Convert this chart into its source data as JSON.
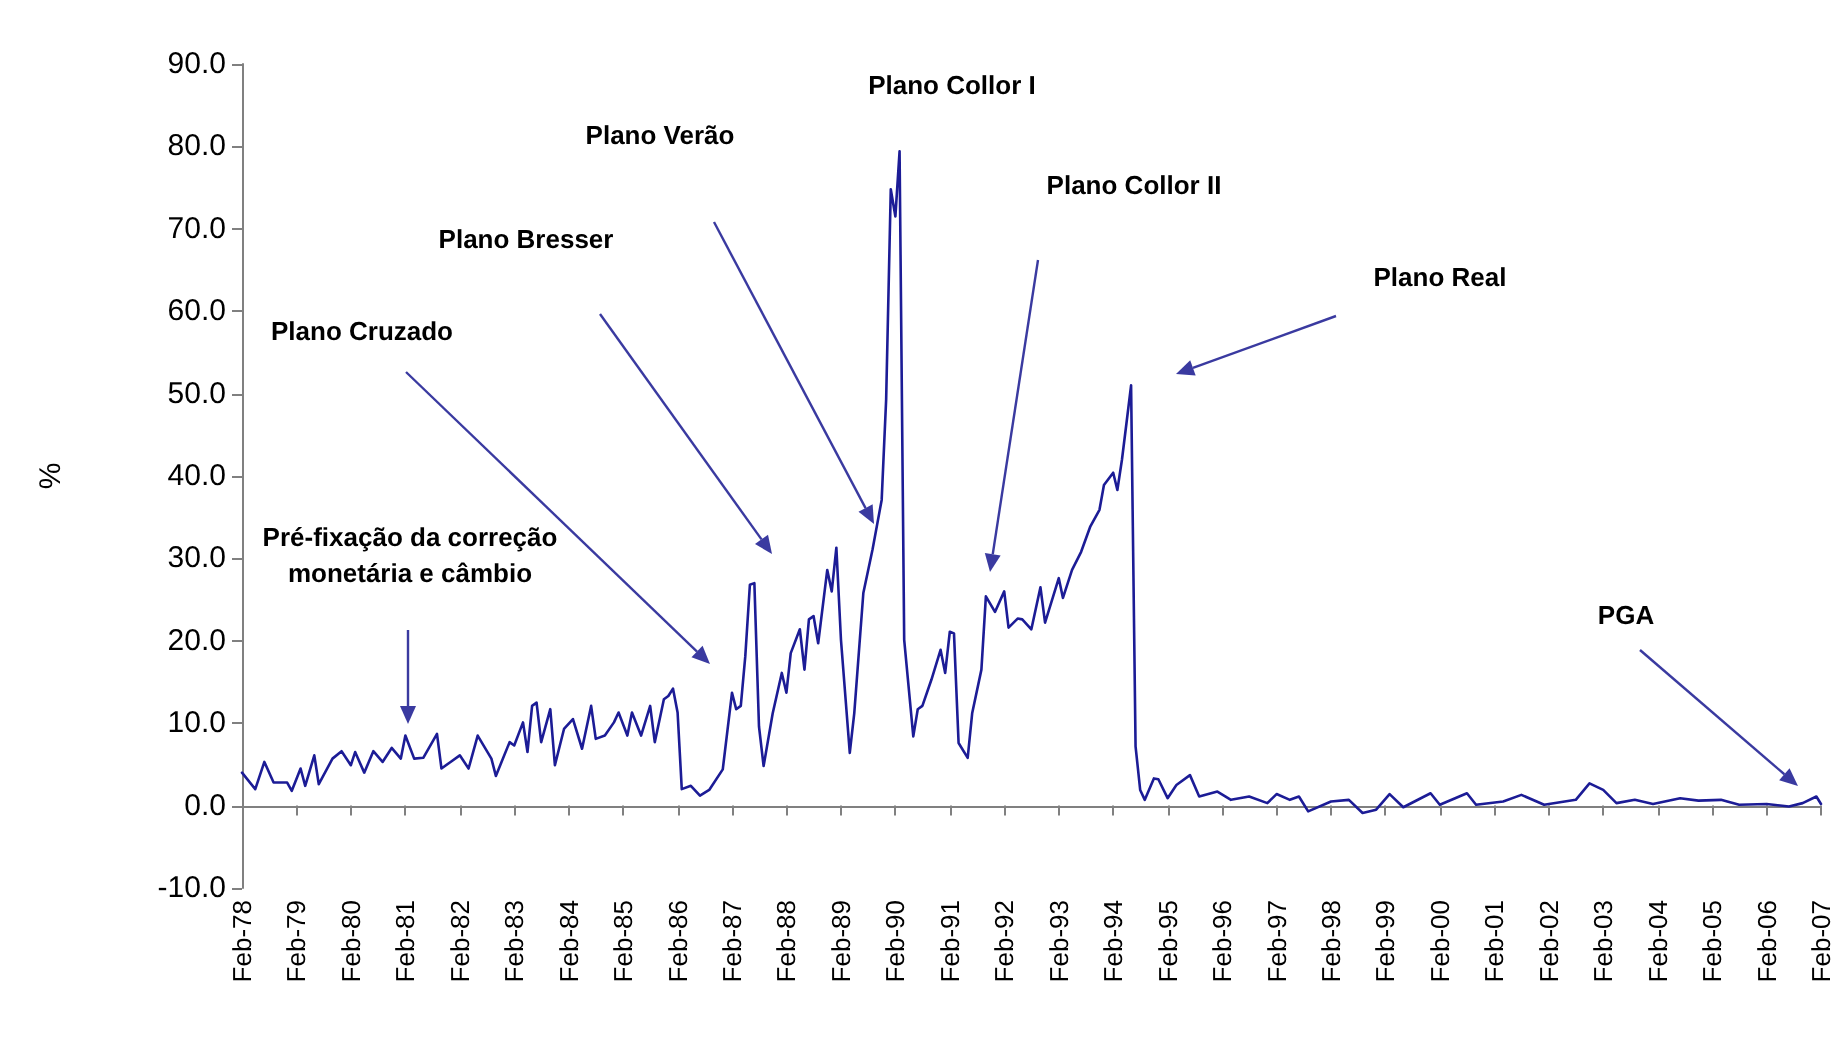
{
  "chart_data": {
    "type": "line",
    "ylabel": "%",
    "xlim": [
      "1978-02",
      "2007-02"
    ],
    "ylim": [
      -10,
      90
    ],
    "xticks": [
      {
        "value": "1978-02",
        "label": "Feb-78"
      },
      {
        "value": "1979-02",
        "label": "Feb-79"
      },
      {
        "value": "1980-02",
        "label": "Feb-80"
      },
      {
        "value": "1981-02",
        "label": "Feb-81"
      },
      {
        "value": "1982-02",
        "label": "Feb-82"
      },
      {
        "value": "1983-02",
        "label": "Feb-83"
      },
      {
        "value": "1984-02",
        "label": "Feb-84"
      },
      {
        "value": "1985-02",
        "label": "Feb-85"
      },
      {
        "value": "1986-02",
        "label": "Feb-86"
      },
      {
        "value": "1987-02",
        "label": "Feb-87"
      },
      {
        "value": "1988-02",
        "label": "Feb-88"
      },
      {
        "value": "1989-02",
        "label": "Feb-89"
      },
      {
        "value": "1990-02",
        "label": "Feb-90"
      },
      {
        "value": "1991-02",
        "label": "Feb-91"
      },
      {
        "value": "1992-02",
        "label": "Feb-92"
      },
      {
        "value": "1993-02",
        "label": "Feb-93"
      },
      {
        "value": "1994-02",
        "label": "Feb-94"
      },
      {
        "value": "1995-02",
        "label": "Feb-95"
      },
      {
        "value": "1996-02",
        "label": "Feb-96"
      },
      {
        "value": "1997-02",
        "label": "Feb-97"
      },
      {
        "value": "1998-02",
        "label": "Feb-98"
      },
      {
        "value": "1999-02",
        "label": "Feb-99"
      },
      {
        "value": "2000-02",
        "label": "Feb-00"
      },
      {
        "value": "2001-02",
        "label": "Feb-01"
      },
      {
        "value": "2002-02",
        "label": "Feb-02"
      },
      {
        "value": "2003-02",
        "label": "Feb-03"
      },
      {
        "value": "2004-02",
        "label": "Feb-04"
      },
      {
        "value": "2005-02",
        "label": "Feb-05"
      },
      {
        "value": "2006-02",
        "label": "Feb-06"
      },
      {
        "value": "2007-02",
        "label": "Feb-07"
      }
    ],
    "yticks": [
      {
        "value": -10,
        "label": "-10.0"
      },
      {
        "value": 0,
        "label": "0.0"
      },
      {
        "value": 10,
        "label": "10.0"
      },
      {
        "value": 20,
        "label": "20.0"
      },
      {
        "value": 30,
        "label": "30.0"
      },
      {
        "value": 40,
        "label": "40.0"
      },
      {
        "value": 50,
        "label": "50.0"
      },
      {
        "value": 60,
        "label": "60.0"
      },
      {
        "value": 70,
        "label": "70.0"
      },
      {
        "value": 80,
        "label": "80.0"
      },
      {
        "value": 90,
        "label": "90.0"
      }
    ],
    "marker": "none",
    "line_style": "solid",
    "series": [
      {
        "color": "#1c1c96",
        "x": [
          "1978-02",
          "1978-05",
          "1978-07",
          "1978-09",
          "1978-12",
          "1979-01",
          "1979-03",
          "1979-04",
          "1979-06",
          "1979-07",
          "1979-10",
          "1979-12",
          "1980-02",
          "1980-03",
          "1980-05",
          "1980-07",
          "1980-09",
          "1980-11",
          "1981-01",
          "1981-02",
          "1981-04",
          "1981-06",
          "1981-09",
          "1981-10",
          "1981-12",
          "1982-02",
          "1982-04",
          "1982-06",
          "1982-09",
          "1982-10",
          "1983-01",
          "1983-02",
          "1983-04",
          "1983-05",
          "1983-06",
          "1983-07",
          "1983-08",
          "1983-10",
          "1983-11",
          "1984-01",
          "1984-03",
          "1984-05",
          "1984-07",
          "1984-08",
          "1984-10",
          "1984-12",
          "1985-01",
          "1985-03",
          "1985-04",
          "1985-06",
          "1985-08",
          "1985-09",
          "1985-11",
          "1985-12",
          "1986-01",
          "1986-02",
          "1986-03",
          "1986-05",
          "1986-07",
          "1986-09",
          "1986-12",
          "1987-02",
          "1987-03",
          "1987-04",
          "1987-05",
          "1987-06",
          "1987-07",
          "1987-08",
          "1987-09",
          "1987-11",
          "1988-01",
          "1988-02",
          "1988-03",
          "1988-05",
          "1988-06",
          "1988-07",
          "1988-08",
          "1988-09",
          "1988-11",
          "1988-12",
          "1989-01",
          "1989-02",
          "1989-04",
          "1989-05",
          "1989-07",
          "1989-09",
          "1989-11",
          "1989-12",
          "1990-01",
          "1990-02",
          "1990-03",
          "1990-04",
          "1990-06",
          "1990-07",
          "1990-08",
          "1990-10",
          "1990-12",
          "1991-01",
          "1991-02",
          "1991-03",
          "1991-04",
          "1991-06",
          "1991-07",
          "1991-09",
          "1991-10",
          "1991-12",
          "1992-02",
          "1992-03",
          "1992-05",
          "1992-06",
          "1992-08",
          "1992-10",
          "1992-11",
          "1993-02",
          "1993-03",
          "1993-05",
          "1993-07",
          "1993-09",
          "1993-11",
          "1993-12",
          "1994-02",
          "1994-03",
          "1994-04",
          "1994-05",
          "1994-06",
          "1994-07",
          "1994-08",
          "1994-09",
          "1994-11",
          "1994-12",
          "1995-02",
          "1995-04",
          "1995-07",
          "1995-09",
          "1996-01",
          "1996-04",
          "1996-08",
          "1996-12",
          "1997-02",
          "1997-05",
          "1997-07",
          "1997-09",
          "1998-02",
          "1998-06",
          "1998-09",
          "1998-12",
          "1999-03",
          "1999-06",
          "1999-12",
          "2000-02",
          "2000-08",
          "2000-10",
          "2001-04",
          "2001-08",
          "2002-01",
          "2002-08",
          "2002-11",
          "2003-02",
          "2003-05",
          "2003-09",
          "2004-01",
          "2004-07",
          "2004-11",
          "2005-04",
          "2005-08",
          "2006-02",
          "2006-07",
          "2006-10",
          "2007-01",
          "2007-02"
        ],
        "values": [
          4.0,
          2.0,
          5.3,
          2.8,
          2.8,
          1.8,
          4.5,
          2.4,
          6.1,
          2.6,
          5.7,
          6.6,
          4.9,
          6.5,
          4.0,
          6.6,
          5.3,
          7.0,
          5.7,
          8.5,
          5.7,
          5.8,
          8.7,
          4.5,
          5.3,
          6.1,
          4.5,
          8.5,
          5.7,
          3.6,
          7.7,
          7.3,
          10.1,
          6.5,
          12.1,
          12.5,
          7.7,
          11.7,
          4.9,
          9.3,
          10.5,
          6.9,
          12.1,
          8.1,
          8.5,
          10.1,
          11.3,
          8.5,
          11.3,
          8.5,
          12.1,
          7.7,
          12.9,
          13.3,
          14.2,
          11.3,
          2.0,
          2.4,
          1.2,
          1.9,
          4.4,
          13.7,
          11.7,
          12.1,
          18.1,
          26.8,
          27.0,
          9.6,
          4.8,
          11.2,
          16.1,
          13.7,
          18.5,
          21.4,
          16.5,
          22.6,
          23.0,
          19.7,
          28.6,
          26.0,
          31.3,
          20.1,
          6.4,
          11.2,
          25.8,
          31.1,
          37.1,
          49.3,
          74.8,
          71.5,
          79.4,
          20.1,
          8.4,
          11.7,
          12.1,
          15.3,
          18.9,
          16.1,
          21.1,
          20.9,
          7.6,
          5.8,
          11.2,
          16.5,
          25.4,
          23.5,
          26.0,
          21.6,
          22.7,
          22.6,
          21.4,
          26.5,
          22.2,
          27.6,
          25.2,
          28.6,
          30.8,
          33.9,
          35.9,
          38.9,
          40.4,
          38.3,
          42.0,
          46.4,
          51.0,
          7.2,
          1.9,
          0.7,
          3.3,
          3.2,
          0.9,
          2.5,
          3.7,
          1.1,
          1.7,
          0.7,
          1.1,
          0.3,
          1.4,
          0.7,
          1.1,
          -0.7,
          0.5,
          0.7,
          -0.9,
          -0.5,
          1.4,
          -0.2,
          1.5,
          0.1,
          1.5,
          0.1,
          0.5,
          1.3,
          0.1,
          0.7,
          2.7,
          1.9,
          0.3,
          0.7,
          0.2,
          0.9,
          0.6,
          0.7,
          0.1,
          0.2,
          -0.1,
          0.3,
          1.1,
          0.2
        ]
      }
    ],
    "annotations": [
      "Pré-fixação da correção monetária e câmbio",
      "Plano Cruzado",
      "Plano Bresser",
      "Plano Verão",
      "Plano Collor I",
      "Plano Collor II",
      "Plano Real",
      "PGA"
    ]
  }
}
